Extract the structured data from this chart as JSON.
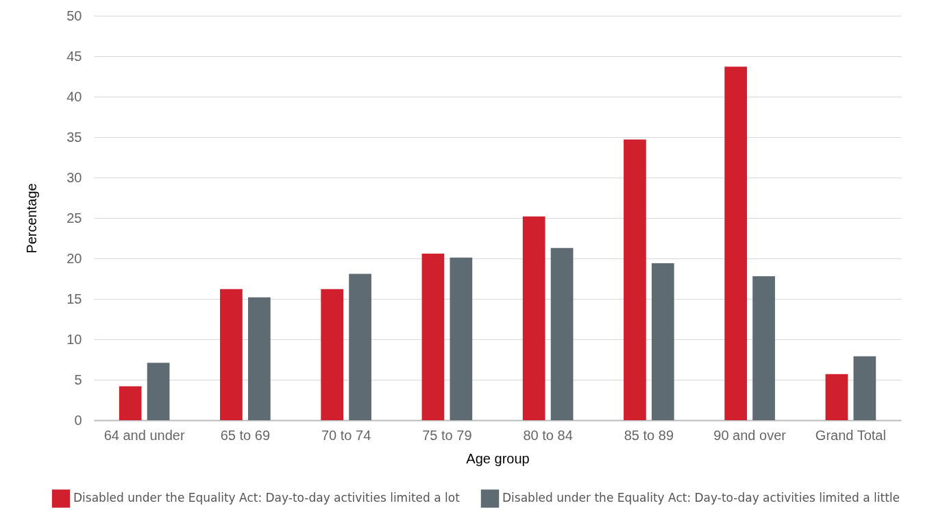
{
  "chart_data": {
    "type": "bar",
    "xlabel": "Age group",
    "ylabel": "Percentage",
    "categories": [
      "64 and under",
      "65 to 69",
      "70 to 74",
      "75 to 79",
      "80 to 84",
      "85 to 89",
      "90 and over",
      "Grand Total"
    ],
    "series": [
      {
        "name": "Disabled under the Equality Act: Day-to-day activities limited a lot",
        "color": "#d0202e",
        "values": [
          4.2,
          16.2,
          16.2,
          20.6,
          25.2,
          34.7,
          43.7,
          5.7
        ]
      },
      {
        "name": "Disabled under the Equality Act: Day-to-day activities limited a little",
        "color": "#5f6b73",
        "values": [
          7.1,
          15.2,
          18.1,
          20.1,
          21.3,
          19.4,
          17.8,
          7.9
        ]
      }
    ],
    "ylim": [
      0,
      50
    ],
    "yticks": [
      0,
      5,
      10,
      15,
      20,
      25,
      30,
      35,
      40,
      45,
      50
    ],
    "grid": "y",
    "legend": "bottom"
  }
}
